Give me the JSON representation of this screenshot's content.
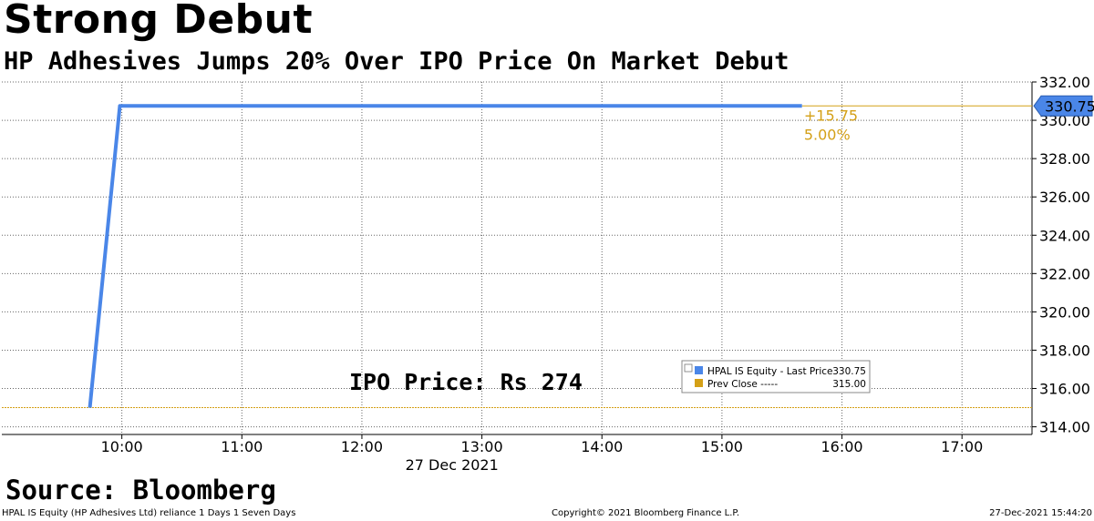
{
  "header": {
    "title": "Strong Debut",
    "subtitle": "HP Adhesives Jumps 20% Over IPO Price On Market Debut"
  },
  "source_label": "Source: Bloomberg",
  "footer": {
    "left": "HPAL IS Equity (HP Adhesives Ltd) reliance 1 Days 1 Seven Days",
    "center": "Copyright© 2021 Bloomberg Finance L.P.",
    "right": "27-Dec-2021 15:44:20"
  },
  "colors": {
    "price_line": "#4a86e8",
    "prev_close": "#d4a017",
    "grid": "#666666"
  },
  "chart_data": {
    "type": "line",
    "title": "",
    "xlabel": "27 Dec 2021",
    "ylabel": "",
    "date": "27 Dec 2021",
    "x_ticks": [
      "10:00",
      "11:00",
      "12:00",
      "13:00",
      "14:00",
      "15:00",
      "16:00",
      "17:00"
    ],
    "y_ticks": [
      "314.00",
      "316.00",
      "318.00",
      "320.00",
      "322.00",
      "324.00",
      "326.00",
      "328.00",
      "330.00",
      "332.00"
    ],
    "ylim": [
      313.6,
      332.0
    ],
    "xlim": [
      "09:00",
      "17:35"
    ],
    "grid": true,
    "legend_position": "bottom-right",
    "series": [
      {
        "name": "HPAL IS Equity - Last Price",
        "legend_value": "330.75",
        "points": [
          {
            "x": "09:44",
            "y": 315.0
          },
          {
            "x": "09:59",
            "y": 330.75
          },
          {
            "x": "15:40",
            "y": 330.75
          }
        ]
      },
      {
        "name": "Prev Close -----",
        "legend_value": "315.00",
        "value": 315.0
      }
    ],
    "last_price_tag": "330.75",
    "change_abs": "+15.75",
    "change_pct": "5.00%",
    "annotation": "IPO Price: Rs 274"
  }
}
